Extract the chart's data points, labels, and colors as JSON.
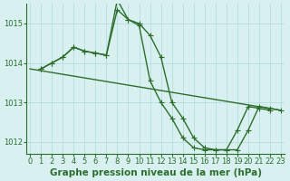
{
  "background_color": "#d8f0f0",
  "grid_color": "#b0d8d8",
  "line_color": "#2d6e2d",
  "marker": "+",
  "markersize": 5,
  "linewidth": 1.0,
  "xlabel": "Graphe pression niveau de la mer (hPa)",
  "xlabel_fontsize": 7.5,
  "xticks": [
    0,
    1,
    2,
    3,
    4,
    5,
    6,
    7,
    8,
    9,
    10,
    11,
    12,
    13,
    14,
    15,
    16,
    17,
    18,
    19,
    20,
    21,
    22,
    23
  ],
  "yticks": [
    1012,
    1013,
    1014,
    1015
  ],
  "ylim": [
    1011.7,
    1015.5
  ],
  "xlim": [
    -0.3,
    23.3
  ],
  "series1": [
    1013.85,
    1014.0,
    1014.15,
    1014.4,
    1014.3,
    1014.25,
    1014.2,
    1015.35,
    1015.1,
    1015.0,
    1014.7,
    1014.15,
    1013.0,
    1012.6,
    1012.1,
    1011.85,
    1011.8,
    1011.8,
    1011.8,
    1012.3,
    1012.9,
    1012.85,
    1012.8
  ],
  "series2": [
    1013.85,
    1014.0,
    1014.15,
    1014.4,
    1014.3,
    1014.25,
    1014.2,
    1015.6,
    1015.1,
    1014.95,
    1013.55,
    1013.0,
    1012.6,
    1012.1,
    1011.85,
    1011.8,
    1011.8,
    1011.8,
    1012.3,
    1012.9,
    1012.85,
    1012.8
  ],
  "series3_x": [
    0,
    23
  ],
  "series3_y": [
    1013.85,
    1012.8
  ],
  "tick_fontsize": 6
}
